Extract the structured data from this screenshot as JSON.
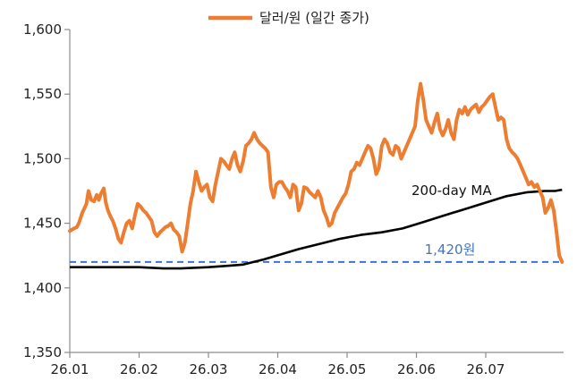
{
  "chart_data": {
    "type": "line",
    "title": "",
    "xlabel": "",
    "ylabel": "",
    "ylim": [
      1350,
      1600
    ],
    "yticks": [
      1350,
      1400,
      1450,
      1500,
      1550,
      1600
    ],
    "ytick_labels": [
      "1,350",
      "1,400",
      "1,450",
      "1,500",
      "1,550",
      "1,600"
    ],
    "xticks": [
      "26.01",
      "26.02",
      "26.03",
      "26.04",
      "26.05",
      "26.06",
      "26.07"
    ],
    "grid": false,
    "legend": {
      "position": "top-center",
      "label": "달러/원 (일간 종가)"
    },
    "series": [
      {
        "name": "달러/원 (일간 종가)",
        "color": "#ED7D31",
        "x": [
          0.0,
          0.03,
          0.06,
          0.1,
          0.13,
          0.18,
          0.24,
          0.27,
          0.31,
          0.35,
          0.39,
          0.42,
          0.45,
          0.49,
          0.52,
          0.55,
          0.59,
          0.62,
          0.66,
          0.7,
          0.74,
          0.78,
          0.82,
          0.86,
          0.9,
          0.94,
          0.98,
          1.02,
          1.06,
          1.1,
          1.14,
          1.18,
          1.22,
          1.26,
          1.3,
          1.34,
          1.38,
          1.42,
          1.46,
          1.5,
          1.54,
          1.58,
          1.62,
          1.66,
          1.7,
          1.74,
          1.78,
          1.82,
          1.86,
          1.9,
          1.94,
          1.98,
          2.02,
          2.06,
          2.1,
          2.14,
          2.18,
          2.22,
          2.26,
          2.3,
          2.34,
          2.38,
          2.42,
          2.46,
          2.5,
          2.54,
          2.58,
          2.62,
          2.66,
          2.7,
          2.74,
          2.78,
          2.82,
          2.86,
          2.9,
          2.94,
          2.98,
          3.02,
          3.06,
          3.1,
          3.14,
          3.18,
          3.22,
          3.26,
          3.3,
          3.34,
          3.38,
          3.42,
          3.46,
          3.5,
          3.54,
          3.58,
          3.62,
          3.66,
          3.7,
          3.74,
          3.78,
          3.82,
          3.86,
          3.9,
          3.94,
          3.98,
          4.02,
          4.06,
          4.1,
          4.14,
          4.18,
          4.22,
          4.26,
          4.3,
          4.34,
          4.38,
          4.42,
          4.46,
          4.5,
          4.54,
          4.58,
          4.62,
          4.66,
          4.7,
          4.74,
          4.78,
          4.82,
          4.86,
          4.9,
          4.94,
          4.98,
          5.02,
          5.06,
          5.1,
          5.14,
          5.18,
          5.22,
          5.26,
          5.3,
          5.34,
          5.38,
          5.42,
          5.46,
          5.5,
          5.54,
          5.58,
          5.62,
          5.66,
          5.7,
          5.74,
          5.78,
          5.82,
          5.86,
          5.9,
          5.94,
          5.98,
          6.02,
          6.06,
          6.1,
          6.14,
          6.18,
          6.22,
          6.26,
          6.3,
          6.34,
          6.38,
          6.42,
          6.46,
          6.5,
          6.54,
          6.58,
          6.62,
          6.66,
          6.7,
          6.74,
          6.78,
          6.82,
          6.86,
          6.9,
          6.94,
          6.98,
          7.02,
          7.06,
          7.1
        ],
        "values": [
          1444,
          1445,
          1446,
          1447,
          1450,
          1458,
          1465,
          1475,
          1468,
          1467,
          1472,
          1468,
          1473,
          1477,
          1466,
          1460,
          1455,
          1452,
          1446,
          1438,
          1435,
          1443,
          1450,
          1452,
          1446,
          1456,
          1465,
          1463,
          1460,
          1458,
          1455,
          1452,
          1443,
          1440,
          1443,
          1445,
          1447,
          1448,
          1450,
          1445,
          1443,
          1440,
          1428,
          1435,
          1450,
          1465,
          1475,
          1490,
          1482,
          1475,
          1478,
          1480,
          1470,
          1467,
          1480,
          1490,
          1500,
          1498,
          1495,
          1492,
          1500,
          1505,
          1495,
          1490,
          1498,
          1510,
          1512,
          1515,
          1520,
          1515,
          1512,
          1510,
          1508,
          1505,
          1478,
          1470,
          1480,
          1482,
          1482,
          1478,
          1475,
          1470,
          1480,
          1478,
          1460,
          1465,
          1478,
          1477,
          1474,
          1472,
          1470,
          1475,
          1470,
          1460,
          1455,
          1448,
          1450,
          1458,
          1462,
          1466,
          1470,
          1473,
          1480,
          1490,
          1492,
          1497,
          1495,
          1500,
          1505,
          1510,
          1508,
          1500,
          1488,
          1493,
          1510,
          1515,
          1512,
          1505,
          1503,
          1510,
          1508,
          1500,
          1505,
          1510,
          1515,
          1520,
          1525,
          1545,
          1558,
          1545,
          1530,
          1525,
          1520,
          1528,
          1535,
          1523,
          1518,
          1523,
          1530,
          1520,
          1515,
          1530,
          1538,
          1535,
          1540,
          1534,
          1538,
          1540,
          1542,
          1536,
          1540,
          1542,
          1545,
          1548,
          1550,
          1540,
          1530,
          1532,
          1530,
          1515,
          1508,
          1505,
          1503,
          1500,
          1495,
          1490,
          1485,
          1480,
          1482,
          1478,
          1480,
          1475,
          1470,
          1458,
          1462,
          1468,
          1460,
          1444,
          1425,
          1420
        ]
      },
      {
        "name": "200-day MA",
        "color": "#000000",
        "x": [
          0.0,
          0.5,
          1.0,
          1.35,
          1.6,
          2.0,
          2.25,
          2.5,
          2.8,
          3.05,
          3.3,
          3.6,
          3.9,
          4.2,
          4.5,
          4.8,
          5.1,
          5.4,
          5.7,
          6.0,
          6.3,
          6.6,
          6.85,
          7.0,
          7.1
        ],
        "values": [
          1416,
          1416,
          1416,
          1415,
          1415,
          1416,
          1417,
          1418,
          1422,
          1426,
          1430,
          1434,
          1438,
          1441,
          1443,
          1446,
          1451,
          1456,
          1461,
          1466,
          1471,
          1474,
          1475,
          1475,
          1476
        ]
      }
    ],
    "reference_line": {
      "value": 1420,
      "label": "1,420원",
      "color": "#4472C4",
      "style": "dashed"
    },
    "annotations": [
      {
        "text": "200-day MA"
      }
    ]
  }
}
